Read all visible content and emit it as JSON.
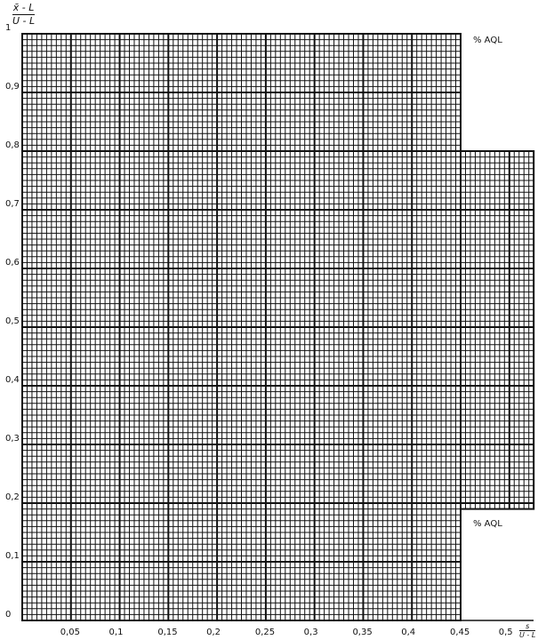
{
  "chart_data": {
    "type": "line",
    "title": "",
    "ylabel": {
      "numerator": "x̄ - L",
      "denominator": "U - L"
    },
    "xlabel": {
      "numerator": "s",
      "denominator": "U - L"
    },
    "xlim": [
      0,
      0.45
    ],
    "ylim": [
      0,
      1
    ],
    "extended_region": {
      "xlim": [
        0.45,
        0.525
      ],
      "ylim": [
        0.19,
        0.8
      ]
    },
    "x_ticks": [
      "0,05",
      "0,1",
      "0,15",
      "0,2",
      "0,25",
      "0,3",
      "0,35",
      "0,4",
      "0,45",
      "0,5"
    ],
    "x_tick_values": [
      0.05,
      0.1,
      0.15,
      0.2,
      0.25,
      0.3,
      0.35,
      0.4,
      0.45,
      0.5
    ],
    "y_ticks": [
      "1",
      "0,9",
      "0,8",
      "0,7",
      "0,6",
      "0,5",
      "0,4",
      "0,3",
      "0,2",
      "0,1",
      "0"
    ],
    "y_tick_values": [
      1,
      0.9,
      0.8,
      0.7,
      0.6,
      0.5,
      0.4,
      0.3,
      0.2,
      0.1,
      0
    ],
    "grid": true,
    "annotations": [
      "% AQL",
      "% AQL"
    ],
    "series": [],
    "colors": {
      "grid": "#111111",
      "background": "#ffffff"
    }
  }
}
